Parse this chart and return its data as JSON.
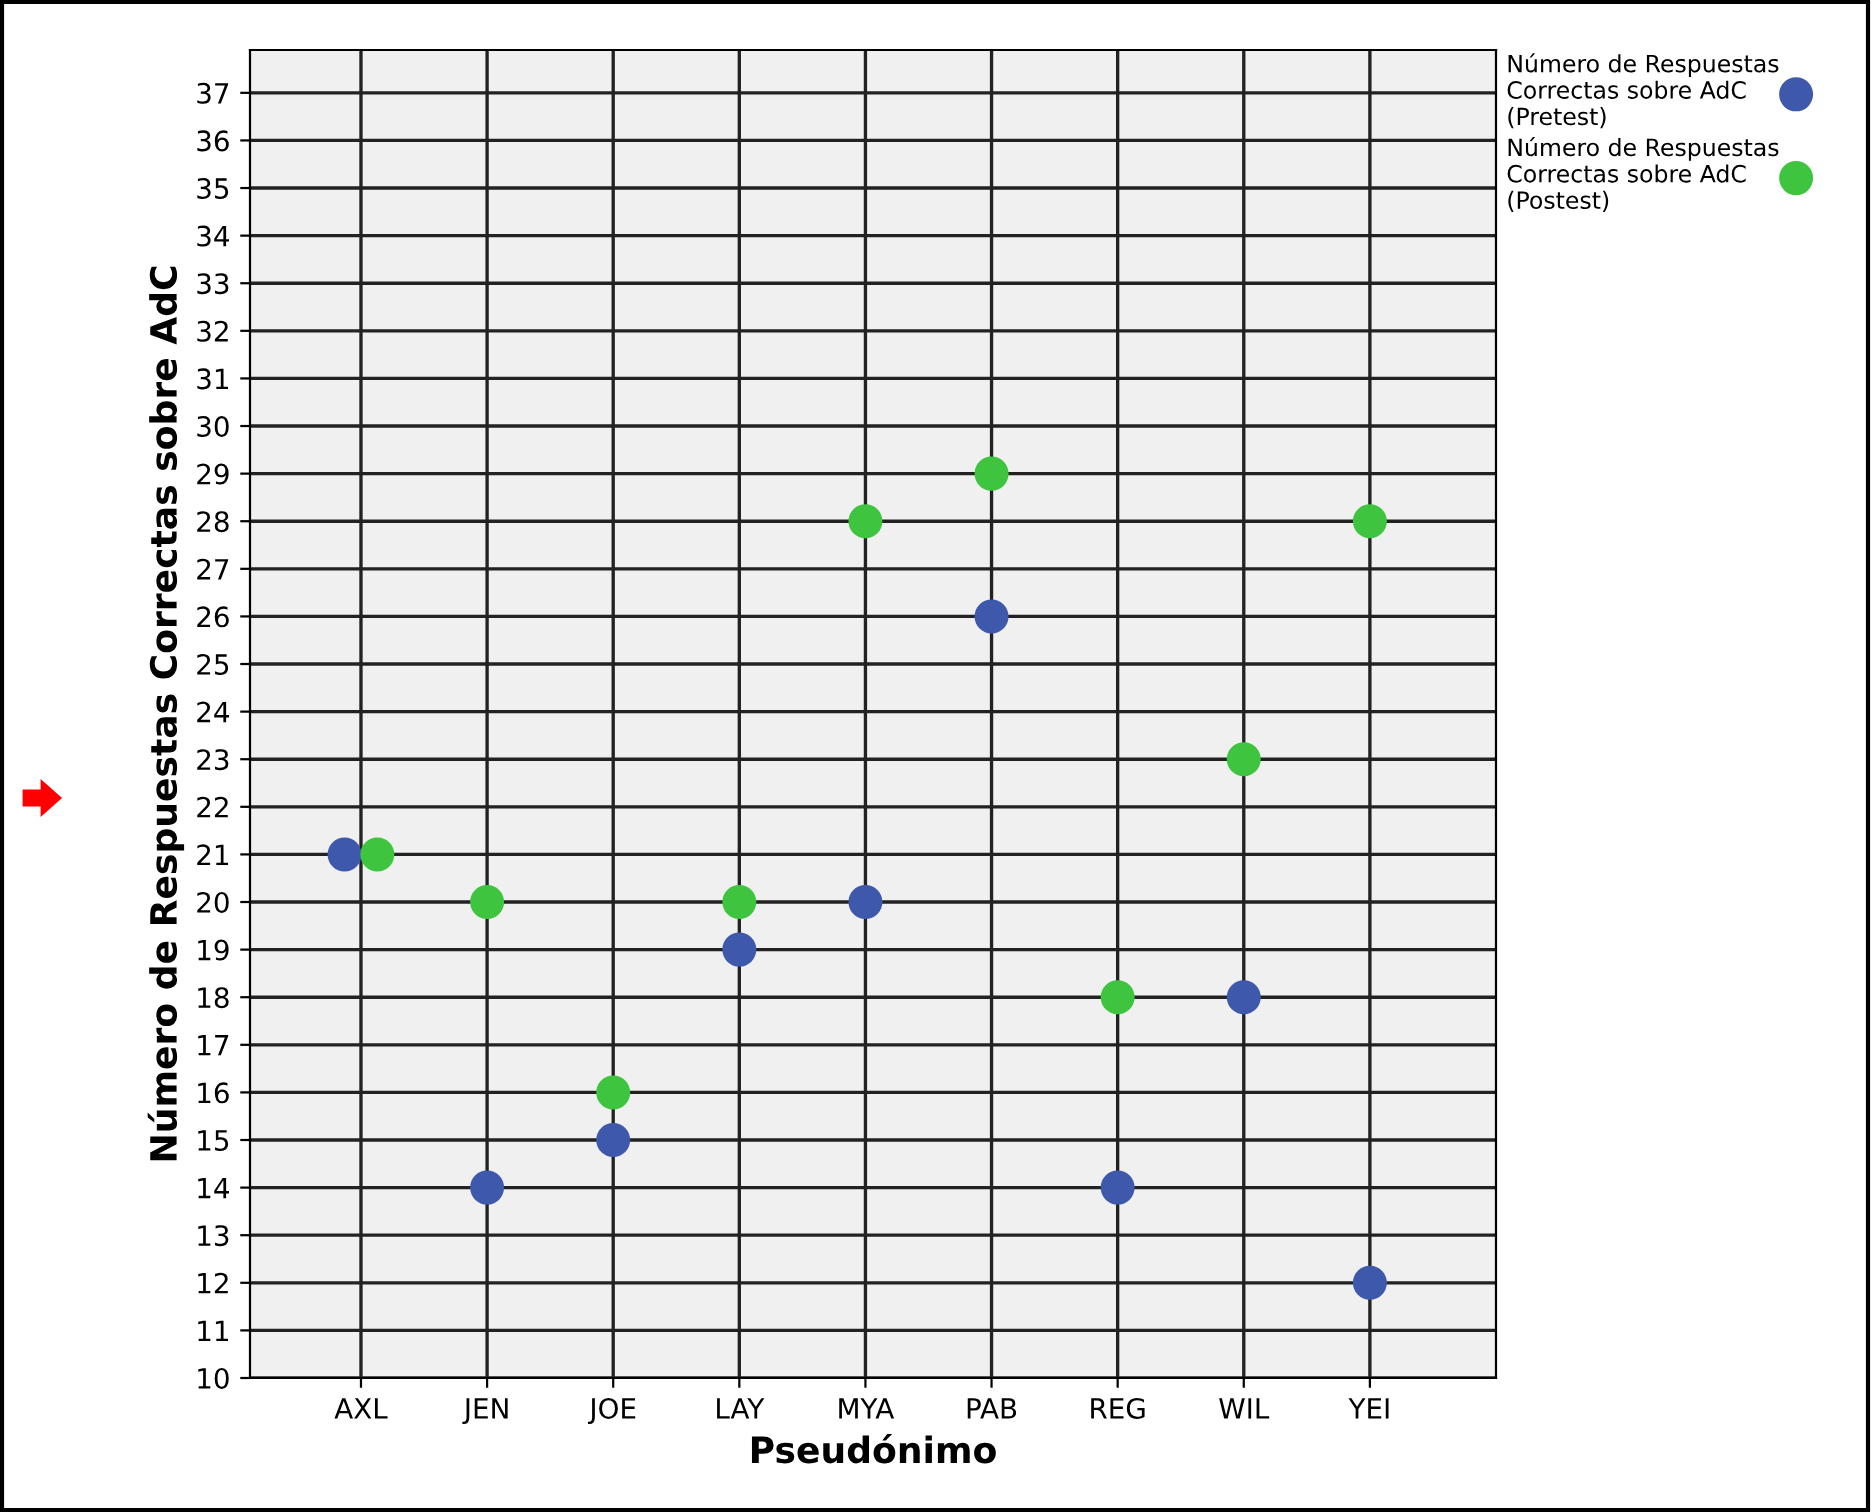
{
  "chart_data": {
    "type": "scatter",
    "xlabel": "Pseudónimo",
    "ylabel": "Número de Respuestas Correctas sobre AdC",
    "categories": [
      "AXL",
      "JEN",
      "JOE",
      "LAY",
      "MYA",
      "PAB",
      "REG",
      "WIL",
      "YEI"
    ],
    "series": [
      {
        "name": "Número de Respuestas Correctas sobre AdC (Pretest)",
        "color": "#3e58ac",
        "values": [
          21,
          14,
          15,
          19,
          20,
          26,
          14,
          18,
          12
        ]
      },
      {
        "name": "Número de Respuestas Correctas sobre AdC (Postest)",
        "color": "#3ec43e",
        "values": [
          21,
          20,
          16,
          20,
          28,
          29,
          18,
          23,
          28
        ]
      }
    ],
    "ylim": [
      10,
      37.9
    ],
    "yticks": [
      10,
      11,
      12,
      13,
      14,
      15,
      16,
      17,
      18,
      19,
      20,
      21,
      22,
      23,
      24,
      25,
      26,
      27,
      28,
      29,
      30,
      31,
      32,
      33,
      34,
      35,
      36,
      37
    ],
    "grid": true,
    "legend": "top right",
    "marker": "circle"
  }
}
